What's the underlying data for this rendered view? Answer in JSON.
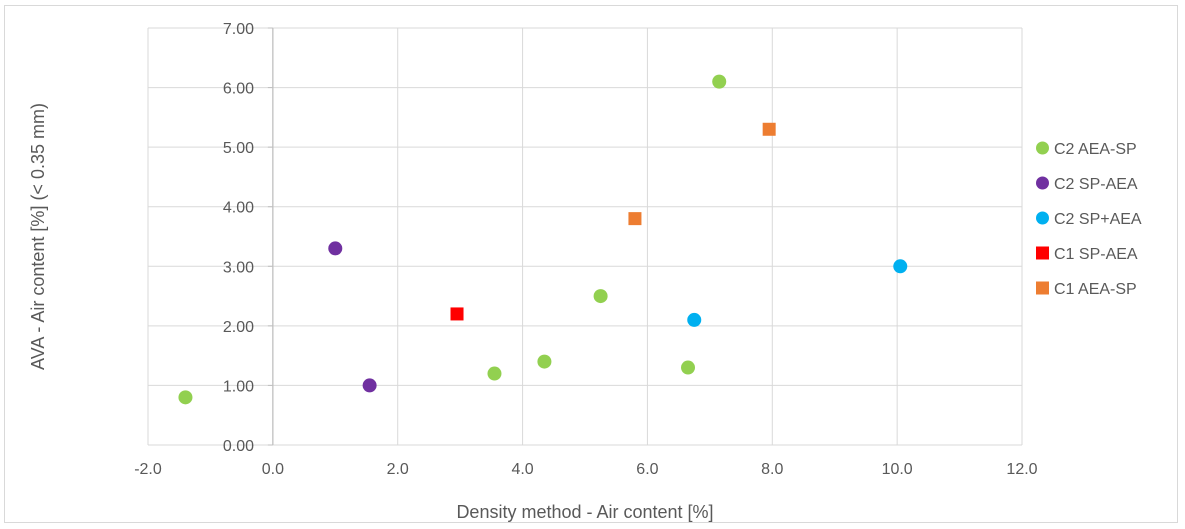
{
  "chart_data": {
    "type": "scatter",
    "xlabel": "Density method - Air content [%]",
    "ylabel": "AVA - Air content [%] (< 0.35 mm)",
    "xlim": [
      -2,
      12
    ],
    "ylim": [
      0,
      7
    ],
    "x_ticks": [
      "-2.0",
      "0.0",
      "2.0",
      "4.0",
      "6.0",
      "8.0",
      "10.0",
      "12.0"
    ],
    "y_ticks": [
      "0.00",
      "1.00",
      "2.00",
      "3.00",
      "4.00",
      "5.00",
      "6.00",
      "7.00"
    ],
    "grid": true,
    "legend_position": "right",
    "series": [
      {
        "name": "C2 AEA-SP",
        "color": "#92d050",
        "marker": "circle",
        "points": [
          [
            -1.4,
            0.8
          ],
          [
            3.55,
            1.2
          ],
          [
            4.35,
            1.4
          ],
          [
            5.25,
            2.5
          ],
          [
            6.65,
            1.3
          ],
          [
            7.15,
            6.1
          ]
        ]
      },
      {
        "name": "C2 SP-AEA",
        "color": "#7030a0",
        "marker": "circle",
        "points": [
          [
            1.0,
            3.3
          ],
          [
            1.55,
            1.0
          ]
        ]
      },
      {
        "name": "C2 SP+AEA",
        "color": "#00b0f0",
        "marker": "circle",
        "points": [
          [
            6.75,
            2.1
          ],
          [
            10.05,
            3.0
          ]
        ]
      },
      {
        "name": "C1 SP-AEA",
        "color": "#ff0000",
        "marker": "square",
        "points": [
          [
            2.95,
            2.2
          ]
        ]
      },
      {
        "name": "C1 AEA-SP",
        "color": "#ed7d31",
        "marker": "square",
        "points": [
          [
            5.8,
            3.8
          ],
          [
            7.95,
            5.3
          ]
        ]
      }
    ]
  }
}
